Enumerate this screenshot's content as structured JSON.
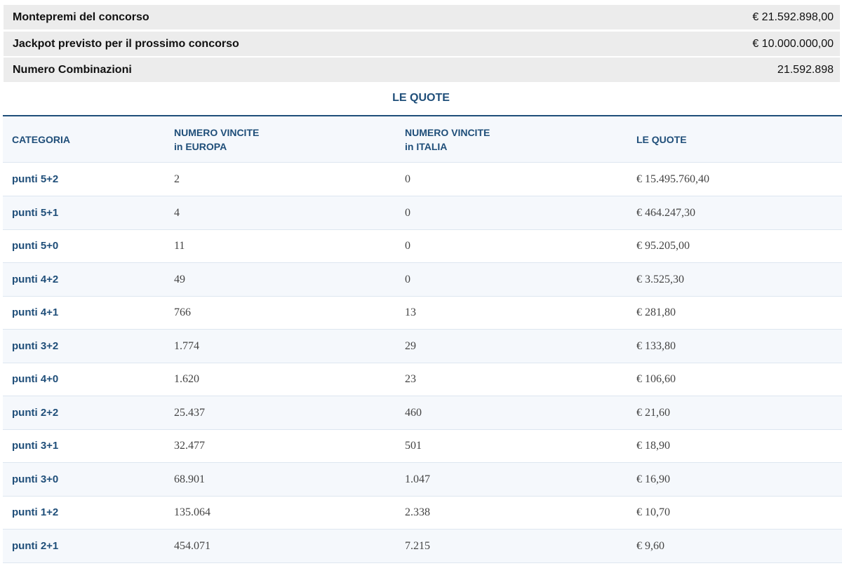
{
  "summary": [
    {
      "label": "Montepremi del concorso",
      "value": "€ 21.592.898,00"
    },
    {
      "label": "Jackpot previsto per il prossimo concorso",
      "value": "€ 10.000.000,00"
    },
    {
      "label": "Numero Combinazioni",
      "value": "21.592.898"
    }
  ],
  "quotes_title": "LE QUOTE",
  "table": {
    "headers": {
      "categoria": "CATEGORIA",
      "europa_line1": "NUMERO VINCITE",
      "europa_line2": "in EUROPA",
      "italia_line1": "NUMERO VINCITE",
      "italia_line2": "in ITALIA",
      "quote": "LE QUOTE"
    },
    "rows": [
      {
        "categoria": "punti 5+2",
        "europa": "2",
        "italia": "0",
        "quota": "€ 15.495.760,40"
      },
      {
        "categoria": "punti 5+1",
        "europa": "4",
        "italia": "0",
        "quota": "€ 464.247,30"
      },
      {
        "categoria": "punti 5+0",
        "europa": "11",
        "italia": "0",
        "quota": "€ 95.205,00"
      },
      {
        "categoria": "punti 4+2",
        "europa": "49",
        "italia": "0",
        "quota": "€ 3.525,30"
      },
      {
        "categoria": "punti 4+1",
        "europa": "766",
        "italia": "13",
        "quota": "€ 281,80"
      },
      {
        "categoria": "punti 3+2",
        "europa": "1.774",
        "italia": "29",
        "quota": "€ 133,80"
      },
      {
        "categoria": "punti 4+0",
        "europa": "1.620",
        "italia": "23",
        "quota": "€ 106,60"
      },
      {
        "categoria": "punti 2+2",
        "europa": "25.437",
        "italia": "460",
        "quota": "€ 21,60"
      },
      {
        "categoria": "punti 3+1",
        "europa": "32.477",
        "italia": "501",
        "quota": "€ 18,90"
      },
      {
        "categoria": "punti 3+0",
        "europa": "68.901",
        "italia": "1.047",
        "quota": "€ 16,90"
      },
      {
        "categoria": "punti 1+2",
        "europa": "135.064",
        "italia": "2.338",
        "quota": "€ 10,70"
      },
      {
        "categoria": "punti 2+1",
        "europa": "454.071",
        "italia": "7.215",
        "quota": "€ 9,60"
      }
    ]
  },
  "colors": {
    "accent": "#1f4e79",
    "summary_bg": "#ececec",
    "alt_row_bg": "#f5f8fc",
    "row_border": "#dde6f0"
  }
}
